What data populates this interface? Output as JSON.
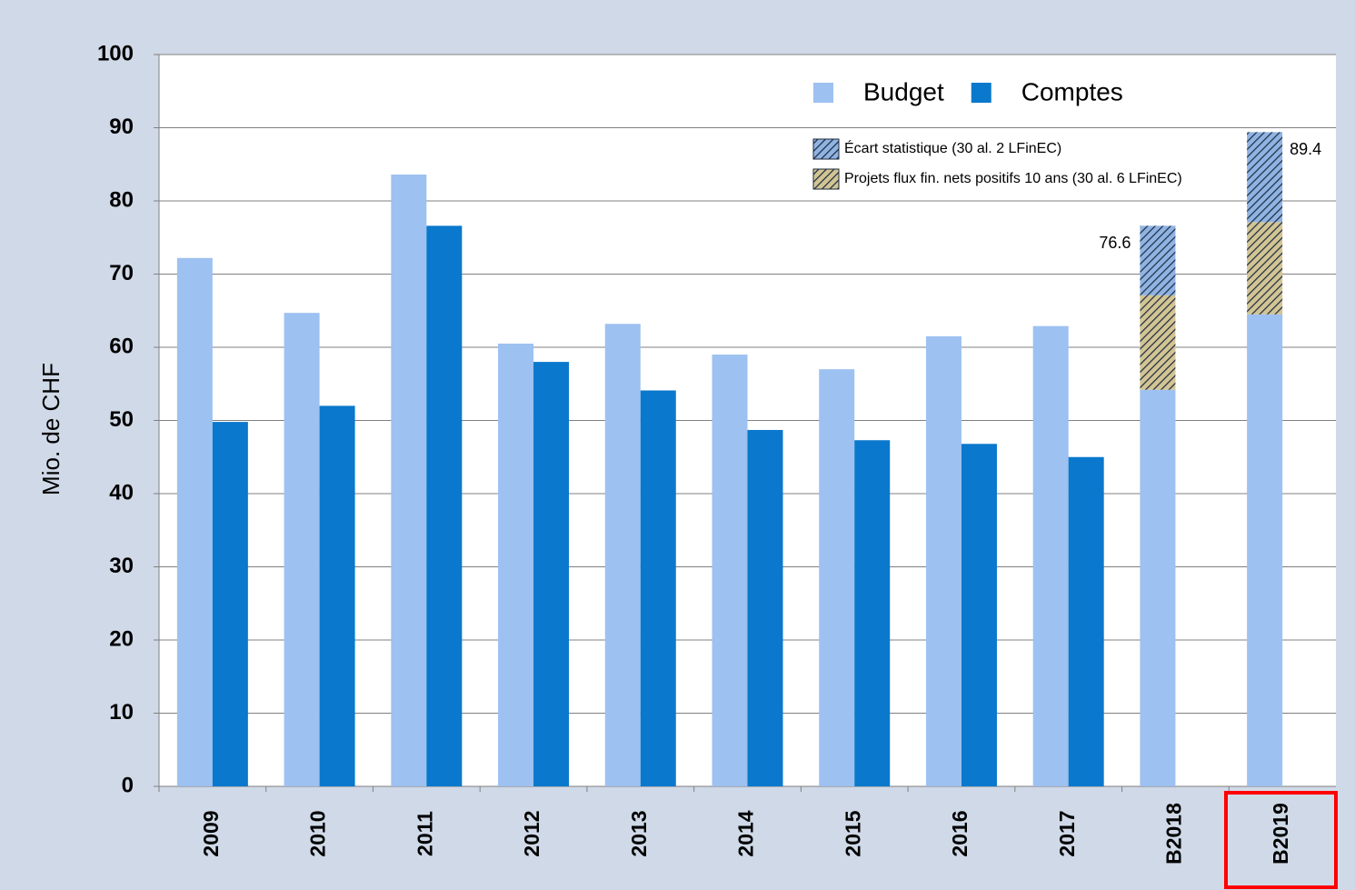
{
  "chart_data": {
    "type": "bar",
    "y_label": "Mio. de CHF",
    "categories": [
      "2009",
      "2010",
      "2011",
      "2012",
      "2013",
      "2014",
      "2015",
      "2016",
      "2017",
      "B2018",
      "B2019"
    ],
    "series": [
      {
        "name": "Budget",
        "color": "#9dc1f0",
        "values": [
          72.2,
          64.7,
          83.6,
          60.5,
          63.2,
          59,
          57,
          61.5,
          62.9,
          54.2,
          64.5
        ]
      },
      {
        "name": "Comptes",
        "color": "#0a78cc",
        "values": [
          49.8,
          52,
          76.6,
          58,
          54.1,
          48.7,
          47.3,
          46.8,
          45,
          null,
          null
        ]
      },
      {
        "name": "Projets flux fin. nets positifs 10 ans (30 al. 6 LFinEC)",
        "color": "#d2c493",
        "hatch": true,
        "stack": "Budget",
        "values": [
          null,
          null,
          null,
          null,
          null,
          null,
          null,
          null,
          null,
          12.9,
          12.6
        ]
      },
      {
        "name": "Écart statistique (30 al. 2 LFinEC)",
        "color": "#8fb3e3",
        "hatch": true,
        "stack": "Budget",
        "values": [
          null,
          null,
          null,
          null,
          null,
          null,
          null,
          null,
          null,
          9.5,
          12.3
        ]
      }
    ],
    "totals": [
      null,
      null,
      null,
      null,
      null,
      null,
      null,
      null,
      null,
      76.6,
      89.4
    ],
    "ylim": [
      0,
      100
    ],
    "yticks": [
      0,
      10,
      20,
      30,
      40,
      50,
      60,
      70,
      80,
      90,
      100
    ],
    "grid": true
  }
}
